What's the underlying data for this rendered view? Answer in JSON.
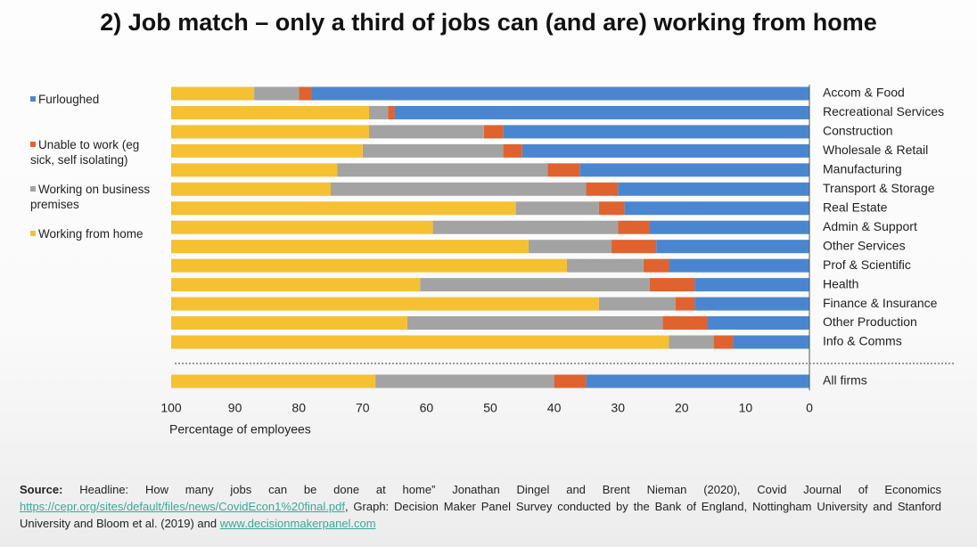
{
  "title": "2) Job match – only a third of jobs can (and are) working from home",
  "chart_data": {
    "type": "stacked-barh",
    "categories": [
      "Accom & Food",
      "Recreational Services",
      "Construction",
      "Wholesale & Retail",
      "Manufacturing",
      "Transport & Storage",
      "Real Estate",
      "Admin & Support",
      "Other Services",
      "Prof & Scientific",
      "Health",
      "Finance & Insurance",
      "Other Production",
      "Info & Comms",
      "All firms"
    ],
    "series": [
      {
        "name": "Furloughed",
        "color": "#4a86d0",
        "values": [
          78,
          65,
          48,
          45,
          36,
          30,
          29,
          25,
          24,
          22,
          18,
          18,
          16,
          12,
          35
        ]
      },
      {
        "name": "Unable to work (eg sick, self isolating)",
        "color": "#e0622f",
        "values": [
          2,
          1,
          3,
          3,
          5,
          5,
          4,
          5,
          7,
          4,
          7,
          3,
          7,
          3,
          5
        ]
      },
      {
        "name": "Working on business premises",
        "color": "#a3a3a3",
        "values": [
          7,
          3,
          18,
          22,
          33,
          40,
          13,
          29,
          13,
          12,
          36,
          12,
          40,
          7,
          28
        ]
      },
      {
        "name": "Working from home",
        "color": "#f5c132",
        "values": [
          13,
          31,
          31,
          30,
          26,
          25,
          54,
          41,
          56,
          62,
          39,
          67,
          37,
          78,
          32
        ]
      }
    ],
    "xlim": [
      100,
      0
    ],
    "xticks": [
      100,
      90,
      80,
      70,
      60,
      50,
      40,
      30,
      20,
      10,
      0
    ],
    "xlabel": "Percentage of employees",
    "legend": "left"
  },
  "source": {
    "label": "Source:",
    "text1": "Headline: How many jobs can be done at home” Jonathan Dingel and Brent Nieman (2020), Covid Journal of Economics",
    "link1": "https://cepr.org/sites/default/files/news/CovidEcon1%20final.pdf",
    "text2": ", Graph: Decision Maker Panel Survey conducted by the Bank of England, Nottingham University and Stanford University and Bloom et al. (2019) and",
    "link2": "www.decisionmakerpanel.com"
  }
}
